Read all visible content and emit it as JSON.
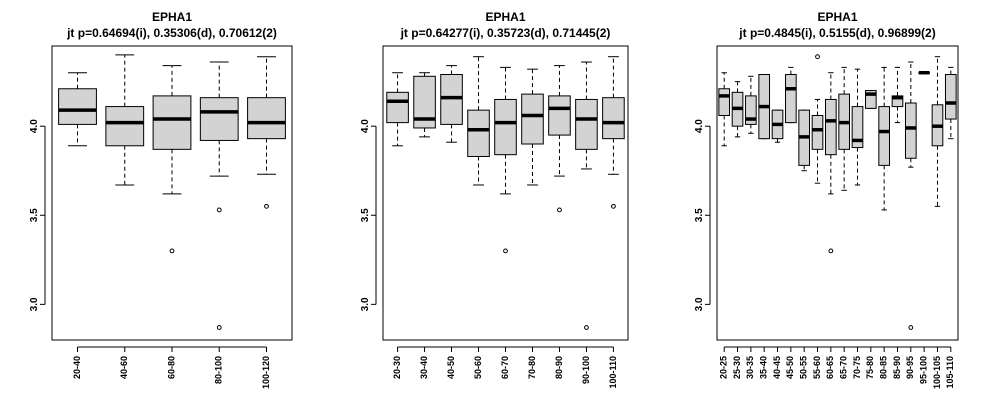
{
  "chart_data": [
    {
      "type": "box",
      "title": "EPHA1",
      "subtitle": "jt p=0.64694(i), 0.35306(d), 0.70612(2)",
      "xlabel": "",
      "ylabel": "",
      "ylim": [
        2.8,
        4.45
      ],
      "yticks": [
        "3.0",
        "3.5",
        "4.0"
      ],
      "categories": [
        "20-40",
        "40-60",
        "60-80",
        "80-100",
        "100-120"
      ],
      "boxes": [
        {
          "whisker_low": 3.89,
          "q1": 4.01,
          "median": 4.09,
          "q3": 4.21,
          "whisker_high": 4.3,
          "outliers": []
        },
        {
          "whisker_low": 3.67,
          "q1": 3.89,
          "median": 4.02,
          "q3": 4.11,
          "whisker_high": 4.4,
          "outliers": []
        },
        {
          "whisker_low": 3.62,
          "q1": 3.87,
          "median": 4.04,
          "q3": 4.17,
          "whisker_high": 4.34,
          "outliers": [
            3.3
          ]
        },
        {
          "whisker_low": 3.72,
          "q1": 3.92,
          "median": 4.08,
          "q3": 4.16,
          "whisker_high": 4.36,
          "outliers": [
            3.53,
            2.87
          ]
        },
        {
          "whisker_low": 3.73,
          "q1": 3.93,
          "median": 4.02,
          "q3": 4.16,
          "whisker_high": 4.39,
          "outliers": [
            3.55
          ]
        }
      ]
    },
    {
      "type": "box",
      "title": "EPHA1",
      "subtitle": "jt p=0.64277(i), 0.35723(d), 0.71445(2)",
      "xlabel": "",
      "ylabel": "",
      "ylim": [
        2.8,
        4.45
      ],
      "yticks": [
        "3.0",
        "3.5",
        "4.0"
      ],
      "categories": [
        "20-30",
        "30-40",
        "40-50",
        "50-60",
        "60-70",
        "70-80",
        "80-90",
        "90-100",
        "100-110"
      ],
      "boxes": [
        {
          "whisker_low": 3.89,
          "q1": 4.02,
          "median": 4.14,
          "q3": 4.19,
          "whisker_high": 4.3,
          "outliers": []
        },
        {
          "whisker_low": 3.94,
          "q1": 3.99,
          "median": 4.04,
          "q3": 4.28,
          "whisker_high": 4.3,
          "outliers": []
        },
        {
          "whisker_low": 3.91,
          "q1": 4.01,
          "median": 4.16,
          "q3": 4.29,
          "whisker_high": 4.34,
          "outliers": []
        },
        {
          "whisker_low": 3.67,
          "q1": 3.83,
          "median": 3.98,
          "q3": 4.09,
          "whisker_high": 4.39,
          "outliers": []
        },
        {
          "whisker_low": 3.62,
          "q1": 3.84,
          "median": 4.02,
          "q3": 4.15,
          "whisker_high": 4.33,
          "outliers": [
            3.3
          ]
        },
        {
          "whisker_low": 3.67,
          "q1": 3.9,
          "median": 4.06,
          "q3": 4.18,
          "whisker_high": 4.32,
          "outliers": []
        },
        {
          "whisker_low": 3.72,
          "q1": 3.95,
          "median": 4.1,
          "q3": 4.17,
          "whisker_high": 4.34,
          "outliers": [
            3.53
          ]
        },
        {
          "whisker_low": 3.76,
          "q1": 3.87,
          "median": 4.04,
          "q3": 4.15,
          "whisker_high": 4.36,
          "outliers": [
            2.87
          ]
        },
        {
          "whisker_low": 3.73,
          "q1": 3.93,
          "median": 4.02,
          "q3": 4.16,
          "whisker_high": 4.39,
          "outliers": [
            3.55
          ]
        }
      ]
    },
    {
      "type": "box",
      "title": "EPHA1",
      "subtitle": "jt p=0.4845(i), 0.5155(d), 0.96899(2)",
      "xlabel": "",
      "ylabel": "",
      "ylim": [
        2.8,
        4.45
      ],
      "yticks": [
        "3.0",
        "3.5",
        "4.0"
      ],
      "categories": [
        "20-25",
        "25-30",
        "30-35",
        "35-40",
        "40-45",
        "45-50",
        "50-55",
        "55-60",
        "60-65",
        "65-70",
        "70-75",
        "75-80",
        "80-85",
        "85-90",
        "90-95",
        "95-100",
        "100-105",
        "105-110"
      ],
      "boxes": [
        {
          "whisker_low": 3.89,
          "q1": 4.06,
          "median": 4.17,
          "q3": 4.21,
          "whisker_high": 4.3,
          "outliers": []
        },
        {
          "whisker_low": 3.94,
          "q1": 4.0,
          "median": 4.1,
          "q3": 4.19,
          "whisker_high": 4.25,
          "outliers": []
        },
        {
          "whisker_low": 3.96,
          "q1": 4.01,
          "median": 4.04,
          "q3": 4.17,
          "whisker_high": 4.28,
          "outliers": []
        },
        {
          "whisker_low": 3.93,
          "q1": 3.93,
          "median": 4.11,
          "q3": 4.29,
          "whisker_high": 4.29,
          "outliers": []
        },
        {
          "whisker_low": 3.91,
          "q1": 3.93,
          "median": 4.01,
          "q3": 4.09,
          "whisker_high": 4.09,
          "outliers": []
        },
        {
          "whisker_low": 4.02,
          "q1": 4.02,
          "median": 4.21,
          "q3": 4.29,
          "whisker_high": 4.33,
          "outliers": []
        },
        {
          "whisker_low": 3.75,
          "q1": 3.78,
          "median": 3.94,
          "q3": 4.09,
          "whisker_high": 4.09,
          "outliers": []
        },
        {
          "whisker_low": 3.68,
          "q1": 3.87,
          "median": 3.98,
          "q3": 4.06,
          "whisker_high": 4.15,
          "outliers": [
            4.39
          ]
        },
        {
          "whisker_low": 3.62,
          "q1": 3.84,
          "median": 4.03,
          "q3": 4.15,
          "whisker_high": 4.3,
          "outliers": [
            3.3
          ]
        },
        {
          "whisker_low": 3.64,
          "q1": 3.87,
          "median": 4.02,
          "q3": 4.18,
          "whisker_high": 4.33,
          "outliers": []
        },
        {
          "whisker_low": 3.67,
          "q1": 3.88,
          "median": 3.92,
          "q3": 4.11,
          "whisker_high": 4.32,
          "outliers": []
        },
        {
          "whisker_low": 4.1,
          "q1": 4.1,
          "median": 4.18,
          "q3": 4.2,
          "whisker_high": 4.2,
          "outliers": []
        },
        {
          "whisker_low": 3.53,
          "q1": 3.78,
          "median": 3.97,
          "q3": 4.11,
          "whisker_high": 4.33,
          "outliers": []
        },
        {
          "whisker_low": 4.02,
          "q1": 4.11,
          "median": 4.16,
          "q3": 4.17,
          "whisker_high": 4.33,
          "outliers": []
        },
        {
          "whisker_low": 3.77,
          "q1": 3.82,
          "median": 3.99,
          "q3": 4.13,
          "whisker_high": 4.36,
          "outliers": [
            2.87
          ]
        },
        {
          "whisker_low": 4.3,
          "q1": 4.3,
          "median": 4.3,
          "q3": 4.3,
          "whisker_high": 4.3,
          "outliers": []
        },
        {
          "whisker_low": 3.55,
          "q1": 3.89,
          "median": 4.0,
          "q3": 4.12,
          "whisker_high": 4.39,
          "outliers": []
        },
        {
          "whisker_low": 3.93,
          "q1": 4.04,
          "median": 4.13,
          "q3": 4.29,
          "whisker_high": 4.33,
          "outliers": []
        }
      ]
    }
  ],
  "colors": {
    "box_fill": "#d3d3d3",
    "stroke": "#000000",
    "background": "#ffffff"
  }
}
